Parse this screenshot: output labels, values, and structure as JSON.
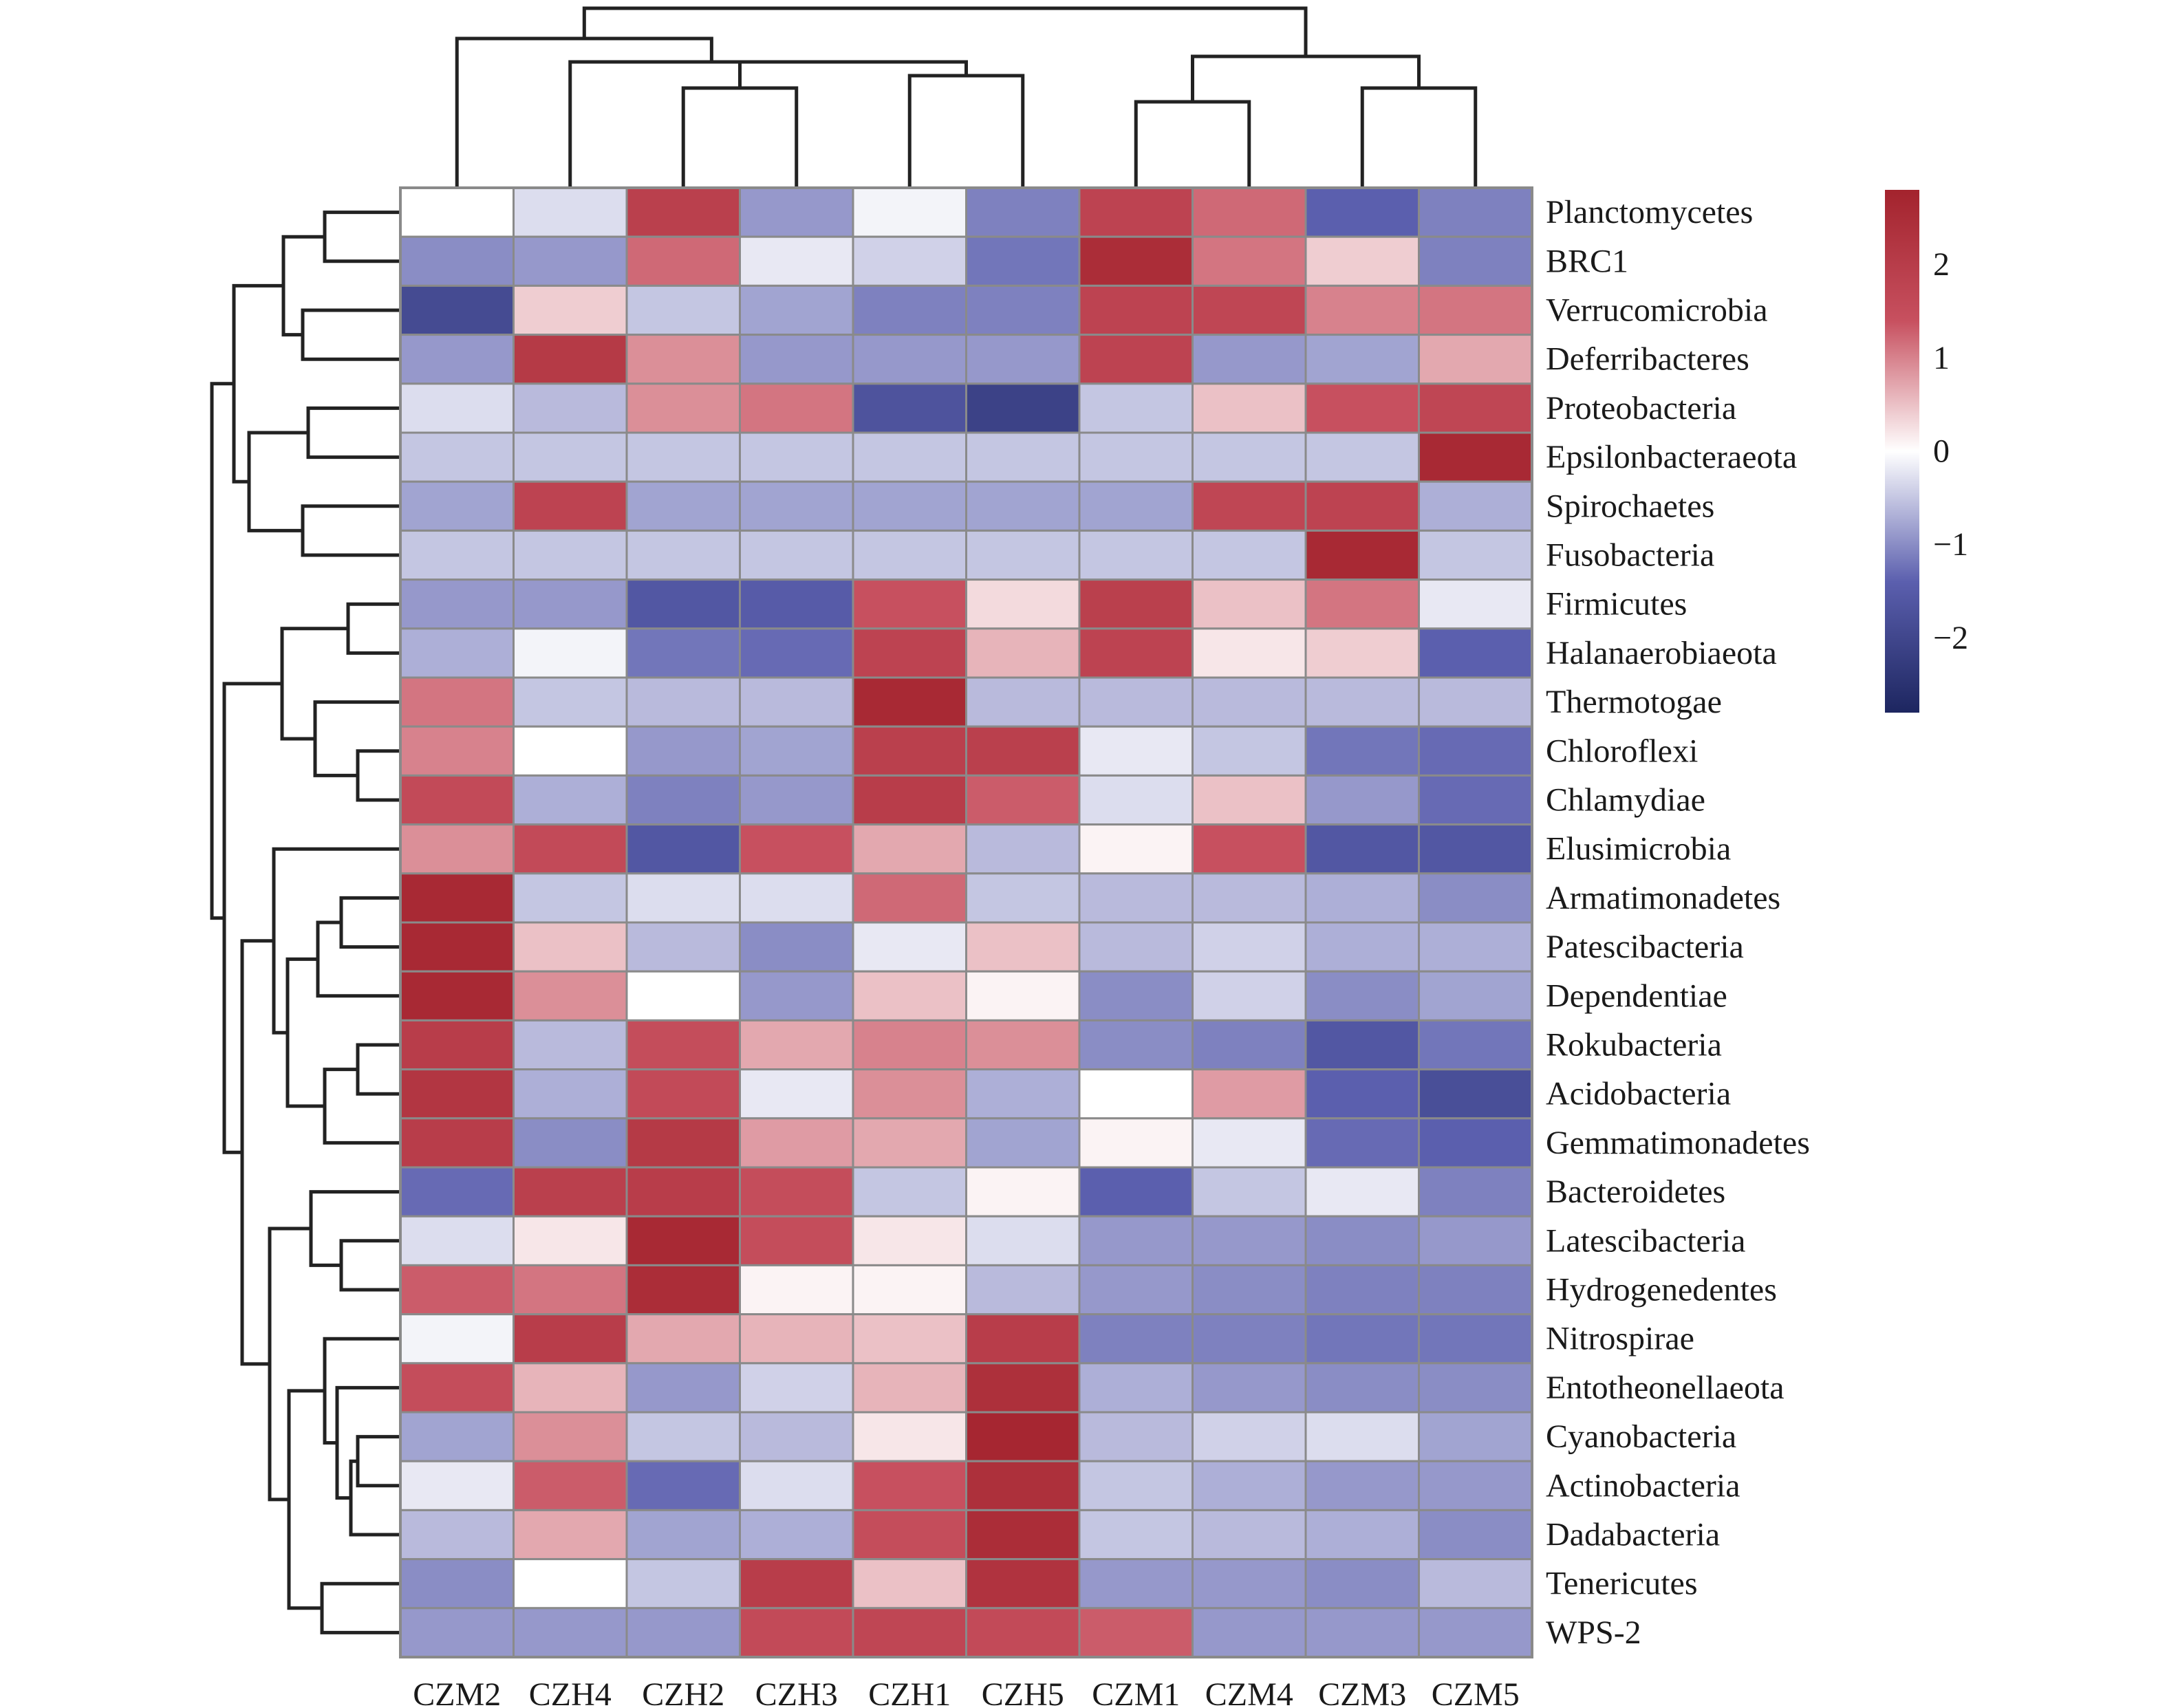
{
  "chart_data": {
    "type": "heatmap",
    "title": "",
    "xlabel": "",
    "ylabel": "",
    "columns": [
      "CZM2",
      "CZH4",
      "CZH2",
      "CZH3",
      "CZH1",
      "CZH5",
      "CZM1",
      "CZM4",
      "CZM3",
      "CZM5"
    ],
    "rows": [
      "Planctomycetes",
      "BRC1",
      "Verrucomicrobia",
      "Deferribacteres",
      "Proteobacteria",
      "Epsilonbacteraeota",
      "Spirochaetes",
      "Fusobacteria",
      "Firmicutes",
      "Halanaerobiaeota",
      "Thermotogae",
      "Chloroflexi",
      "Chlamydiae",
      "Elusimicrobia",
      "Armatimonadetes",
      "Patescibacteria",
      "Dependentiae",
      "Rokubacteria",
      "Acidobacteria",
      "Gemmatimonadetes",
      "Bacteroidetes",
      "Latescibacteria",
      "Hydrogenedentes",
      "Nitrospirae",
      "Entotheonellaeota",
      "Cyanobacteria",
      "Actinobacteria",
      "Dadabacteria",
      "Tenericutes",
      "WPS-2"
    ],
    "values": [
      [
        0.0,
        -0.3,
        1.9,
        -0.9,
        -0.1,
        -1.1,
        1.8,
        1.2,
        -1.4,
        -1.1
      ],
      [
        -1.0,
        -0.9,
        1.2,
        -0.2,
        -0.4,
        -1.2,
        2.5,
        1.1,
        0.4,
        -1.1
      ],
      [
        -1.9,
        0.4,
        -0.5,
        -0.8,
        -1.1,
        -1.1,
        1.8,
        1.7,
        1.0,
        1.1
      ],
      [
        -0.9,
        2.1,
        0.9,
        -0.9,
        -0.9,
        -0.9,
        1.8,
        -0.9,
        -0.8,
        0.7
      ],
      [
        -0.3,
        -0.6,
        0.9,
        1.1,
        -1.7,
        -2.1,
        -0.5,
        0.5,
        1.4,
        1.7
      ],
      [
        -0.5,
        -0.5,
        -0.5,
        -0.5,
        -0.5,
        -0.5,
        -0.5,
        -0.5,
        -0.5,
        2.6
      ],
      [
        -0.8,
        1.8,
        -0.8,
        -0.8,
        -0.8,
        -0.8,
        -0.8,
        1.7,
        1.8,
        -0.7
      ],
      [
        -0.5,
        -0.5,
        -0.5,
        -0.5,
        -0.5,
        -0.5,
        -0.5,
        -0.5,
        2.6,
        -0.5
      ],
      [
        -0.9,
        -0.9,
        -1.6,
        -1.5,
        1.4,
        0.3,
        1.9,
        0.5,
        1.1,
        -0.2
      ],
      [
        -0.7,
        -0.1,
        -1.2,
        -1.3,
        1.8,
        0.6,
        1.8,
        0.2,
        0.4,
        -1.4
      ],
      [
        1.1,
        -0.5,
        -0.6,
        -0.6,
        2.6,
        -0.6,
        -0.6,
        -0.6,
        -0.6,
        -0.6
      ],
      [
        1.0,
        0.0,
        -0.9,
        -0.8,
        1.9,
        1.9,
        -0.2,
        -0.5,
        -1.2,
        -1.3
      ],
      [
        1.6,
        -0.7,
        -1.1,
        -0.9,
        2.0,
        1.3,
        -0.3,
        0.5,
        -0.9,
        -1.3
      ],
      [
        0.9,
        1.6,
        -1.6,
        1.4,
        0.7,
        -0.6,
        0.1,
        1.4,
        -1.6,
        -1.6
      ],
      [
        2.6,
        -0.5,
        -0.3,
        -0.3,
        1.2,
        -0.5,
        -0.6,
        -0.6,
        -0.7,
        -1.0
      ],
      [
        2.6,
        0.5,
        -0.6,
        -1.0,
        -0.2,
        0.5,
        -0.6,
        -0.4,
        -0.7,
        -0.7
      ],
      [
        2.6,
        0.9,
        0.0,
        -0.9,
        0.5,
        0.1,
        -1.0,
        -0.4,
        -1.0,
        -0.8
      ],
      [
        2.0,
        -0.6,
        1.5,
        0.7,
        1.0,
        0.9,
        -1.0,
        -1.1,
        -1.6,
        -1.2
      ],
      [
        2.2,
        -0.7,
        1.6,
        -0.2,
        0.9,
        -0.7,
        0.0,
        0.8,
        -1.4,
        -1.8
      ],
      [
        2.0,
        -1.0,
        2.1,
        0.8,
        0.7,
        -0.8,
        0.1,
        -0.2,
        -1.3,
        -1.4
      ],
      [
        -1.3,
        1.9,
        2.0,
        1.5,
        -0.5,
        0.1,
        -1.4,
        -0.5,
        -0.2,
        -1.1
      ],
      [
        -0.3,
        0.2,
        2.6,
        1.5,
        0.2,
        -0.3,
        -0.9,
        -0.9,
        -1.0,
        -0.9
      ],
      [
        1.3,
        1.1,
        2.5,
        0.1,
        0.1,
        -0.6,
        -0.9,
        -1.0,
        -1.1,
        -1.1
      ],
      [
        -0.1,
        2.0,
        0.7,
        0.6,
        0.5,
        2.0,
        -1.1,
        -1.1,
        -1.2,
        -1.2
      ],
      [
        1.5,
        0.6,
        -0.9,
        -0.4,
        0.6,
        2.4,
        -0.7,
        -0.9,
        -1.0,
        -1.0
      ],
      [
        -0.8,
        0.9,
        -0.5,
        -0.6,
        0.2,
        2.7,
        -0.6,
        -0.4,
        -0.3,
        -0.8
      ],
      [
        -0.2,
        1.3,
        -1.3,
        -0.3,
        1.4,
        2.4,
        -0.5,
        -0.7,
        -0.9,
        -0.9
      ],
      [
        -0.6,
        0.7,
        -0.8,
        -0.7,
        1.5,
        2.5,
        -0.5,
        -0.6,
        -0.7,
        -1.0
      ],
      [
        -1.0,
        0.0,
        -0.5,
        2.0,
        0.5,
        2.3,
        -0.9,
        -0.9,
        -1.0,
        -0.6
      ],
      [
        -0.9,
        -0.9,
        -0.9,
        1.6,
        1.7,
        1.6,
        1.3,
        -0.9,
        -0.9,
        -0.9
      ]
    ],
    "colorbar": {
      "ticks": [
        2,
        1,
        0,
        -1,
        -2
      ],
      "tick_labels": [
        "2",
        "1",
        "0",
        "−1",
        "−2"
      ],
      "range": [
        -2.8,
        2.8
      ],
      "colors": {
        "low": "#1d2660",
        "mid_low": "#5b5fae",
        "mid": "#ffffff",
        "mid_high": "#c7505f",
        "high": "#a3232d"
      }
    },
    "dendrograms": {
      "column": "top",
      "row": "left"
    },
    "grid": true
  }
}
